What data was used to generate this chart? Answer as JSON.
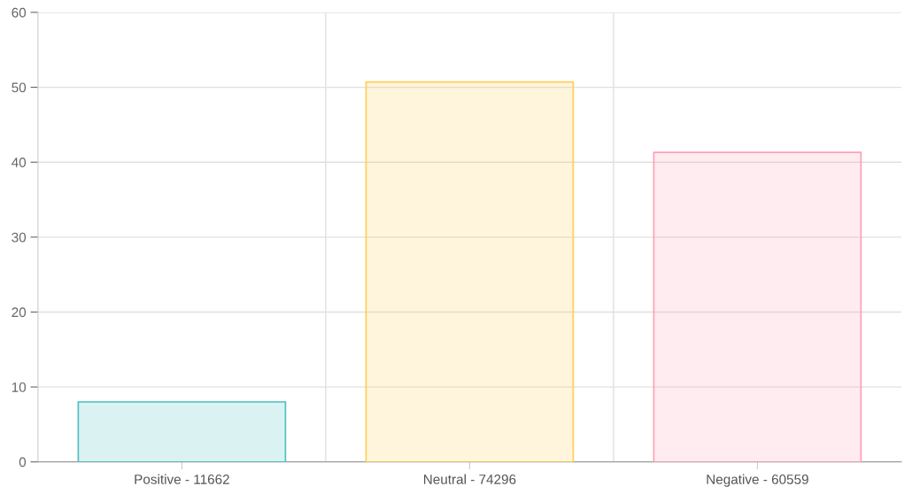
{
  "chart_data": {
    "type": "bar",
    "categories": [
      "Positive - 11662",
      "Neutral - 74296",
      "Negative - 60559"
    ],
    "values": [
      8.0,
      50.7,
      41.3
    ],
    "colors": [
      "#4bc0c0",
      "#ffce56",
      "#ff9fb5"
    ],
    "ylim": [
      0,
      60
    ],
    "yticks": [
      0,
      10,
      20,
      30,
      40,
      50,
      60
    ],
    "grid": true
  }
}
